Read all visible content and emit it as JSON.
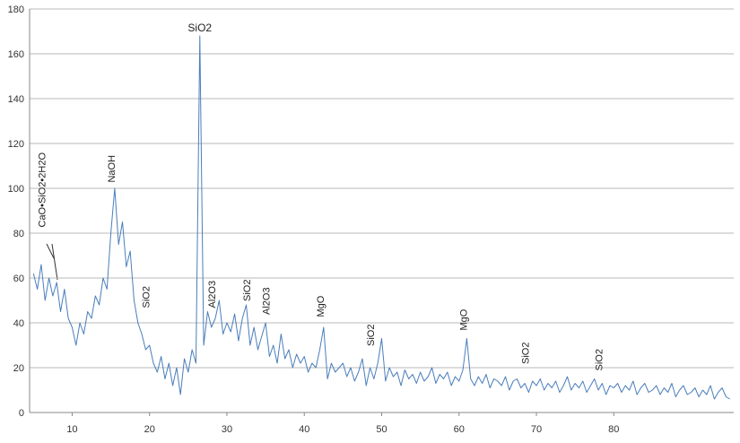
{
  "chart_data": {
    "type": "line",
    "x": [
      5,
      5.5,
      6,
      6.5,
      7,
      7.5,
      8,
      8.5,
      9,
      9.5,
      10,
      10.5,
      11,
      11.5,
      12,
      12.5,
      13,
      13.5,
      14,
      14.5,
      15,
      15.5,
      16,
      16.5,
      17,
      17.5,
      18,
      18.5,
      19,
      19.5,
      20,
      20.5,
      21,
      21.5,
      22,
      22.5,
      23,
      23.5,
      24,
      24.5,
      25,
      25.5,
      26,
      26.5,
      27,
      27.5,
      28,
      28.5,
      29,
      29.5,
      30,
      30.5,
      31,
      31.5,
      32,
      32.5,
      33,
      33.5,
      34,
      34.5,
      35,
      35.5,
      36,
      36.5,
      37,
      37.5,
      38,
      38.5,
      39,
      39.5,
      40,
      40.5,
      41,
      41.5,
      42,
      42.5,
      43,
      43.5,
      44,
      44.5,
      45,
      45.5,
      46,
      46.5,
      47,
      47.5,
      48,
      48.5,
      49,
      49.5,
      50,
      50.5,
      51,
      51.5,
      52,
      52.5,
      53,
      53.5,
      54,
      54.5,
      55,
      55.5,
      56,
      56.5,
      57,
      57.5,
      58,
      58.5,
      59,
      59.5,
      60,
      60.5,
      61,
      61.5,
      62,
      62.5,
      63,
      63.5,
      64,
      64.5,
      65,
      65.5,
      66,
      66.5,
      67,
      67.5,
      68,
      68.5,
      69,
      69.5,
      70,
      70.5,
      71,
      71.5,
      72,
      72.5,
      73,
      73.5,
      74,
      74.5,
      75,
      75.5,
      76,
      76.5,
      77,
      77.5,
      78,
      78.5,
      79,
      79.5,
      80,
      80.5,
      81,
      81.5,
      82,
      82.5,
      83,
      83.5,
      84,
      84.5,
      85,
      85.5,
      86,
      86.5,
      87,
      87.5,
      88,
      88.5,
      89,
      89.5,
      90,
      90.5,
      91,
      91.5,
      92,
      92.5,
      93,
      93.5,
      94,
      94.5,
      95
    ],
    "series": [
      {
        "color": "#4a7ebb",
        "values": [
          62,
          55,
          66,
          50,
          60,
          52,
          58,
          45,
          55,
          42,
          38,
          30,
          40,
          35,
          45,
          42,
          52,
          48,
          60,
          55,
          80,
          100,
          75,
          85,
          65,
          72,
          50,
          40,
          35,
          28,
          30,
          22,
          18,
          25,
          15,
          22,
          12,
          20,
          8,
          24,
          18,
          28,
          22,
          168,
          30,
          45,
          38,
          42,
          50,
          35,
          40,
          36,
          44,
          32,
          42,
          48,
          30,
          38,
          28,
          34,
          40,
          25,
          30,
          22,
          35,
          24,
          28,
          20,
          26,
          22,
          25,
          18,
          22,
          20,
          28,
          38,
          15,
          22,
          18,
          20,
          22,
          16,
          20,
          14,
          18,
          24,
          12,
          20,
          15,
          22,
          33,
          14,
          20,
          16,
          18,
          12,
          19,
          15,
          17,
          13,
          18,
          14,
          16,
          20,
          13,
          17,
          15,
          18,
          12,
          16,
          14,
          19,
          33,
          15,
          12,
          16,
          13,
          17,
          11,
          15,
          14,
          12,
          16,
          10,
          14,
          15,
          11,
          13,
          9,
          14,
          12,
          15,
          10,
          13,
          11,
          14,
          9,
          12,
          16,
          10,
          13,
          11,
          14,
          9,
          12,
          15,
          10,
          13,
          8,
          12,
          11,
          13,
          9,
          12,
          10,
          14,
          8,
          11,
          13,
          9,
          10,
          12,
          8,
          11,
          9,
          13,
          7,
          10,
          12,
          8,
          9,
          11,
          7,
          10,
          8,
          12,
          6,
          9,
          11,
          7,
          6
        ]
      }
    ],
    "xlim": [
      4.5,
      95.5
    ],
    "xticks": [
      10,
      20,
      30,
      40,
      50,
      60,
      70,
      80
    ],
    "ylim": [
      0,
      180
    ],
    "yticks": [
      0,
      20,
      40,
      60,
      80,
      100,
      120,
      140,
      160,
      180
    ],
    "grid": true,
    "annotations": [
      {
        "text": "CaO•SiO2•2H2O",
        "x": 6.5,
        "y": 81,
        "rotated": true
      },
      {
        "text": "NaOH",
        "x": 15.5,
        "y": 101,
        "rotated": true
      },
      {
        "text": "SiO2",
        "x": 26.5,
        "y": 170,
        "rotated": false
      },
      {
        "text": "SiO2",
        "x": 20,
        "y": 45,
        "rotated": true
      },
      {
        "text": "Al2O3",
        "x": 28.5,
        "y": 45,
        "rotated": true
      },
      {
        "text": "SiO2",
        "x": 33,
        "y": 48,
        "rotated": true
      },
      {
        "text": "Al2O3",
        "x": 35.5,
        "y": 42,
        "rotated": true
      },
      {
        "text": "MgO",
        "x": 42.5,
        "y": 41,
        "rotated": true
      },
      {
        "text": "SiO2",
        "x": 49,
        "y": 28,
        "rotated": true
      },
      {
        "text": "MgO",
        "x": 61,
        "y": 35,
        "rotated": true
      },
      {
        "text": "SiO2",
        "x": 69,
        "y": 20,
        "rotated": true
      },
      {
        "text": "SiO2",
        "x": 78.5,
        "y": 17,
        "rotated": true
      }
    ]
  }
}
